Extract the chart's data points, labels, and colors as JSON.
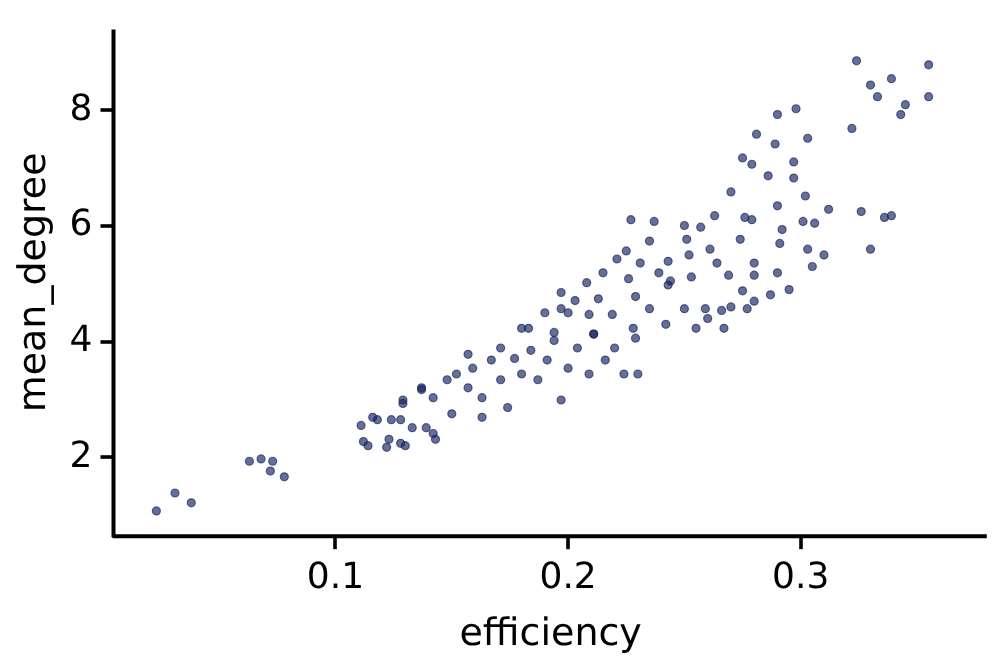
{
  "chart_data": {
    "type": "scatter",
    "xlabel": "efficiency",
    "ylabel": "mean_degree",
    "xlim": [
      0.005,
      0.38
    ],
    "ylim": [
      0.65,
      9.4
    ],
    "xticks": [
      0.1,
      0.2,
      0.3
    ],
    "yticks": [
      2,
      4,
      6,
      8
    ],
    "grid": false,
    "legend": false,
    "marker": "circle",
    "series": [
      {
        "color": "#14235e",
        "x": [
          0.023,
          0.031,
          0.038,
          0.063,
          0.068,
          0.073,
          0.072,
          0.078,
          0.111,
          0.112,
          0.114,
          0.118,
          0.122,
          0.123,
          0.128,
          0.13,
          0.128,
          0.133,
          0.129,
          0.137,
          0.142,
          0.143,
          0.324,
          0.355,
          0.33,
          0.339,
          0.333,
          0.345,
          0.355,
          0.343,
          0.322,
          0.29,
          0.298,
          0.281,
          0.289,
          0.303,
          0.275,
          0.279,
          0.297,
          0.286,
          0.297,
          0.27,
          0.302,
          0.263,
          0.29,
          0.276,
          0.279,
          0.301,
          0.312,
          0.326,
          0.339,
          0.336,
          0.306,
          0.292,
          0.274,
          0.291,
          0.303,
          0.33,
          0.227,
          0.237,
          0.25,
          0.257,
          0.235,
          0.225,
          0.221,
          0.231,
          0.243,
          0.251,
          0.252,
          0.261,
          0.264,
          0.215,
          0.226,
          0.208,
          0.239,
          0.244,
          0.253,
          0.269,
          0.28,
          0.28,
          0.29,
          0.197,
          0.203,
          0.213,
          0.229,
          0.243,
          0.275,
          0.287,
          0.19,
          0.2,
          0.219,
          0.235,
          0.25,
          0.259,
          0.266,
          0.277,
          0.18,
          0.194,
          0.211,
          0.228,
          0.242,
          0.255,
          0.267,
          0.116,
          0.124,
          0.129,
          0.137,
          0.142,
          0.148,
          0.152,
          0.157,
          0.159,
          0.163,
          0.167,
          0.171,
          0.174,
          0.177,
          0.18,
          0.184,
          0.187,
          0.191,
          0.194,
          0.197,
          0.2,
          0.204,
          0.209,
          0.211,
          0.216,
          0.22,
          0.224,
          0.229,
          0.23,
          0.15,
          0.139,
          0.163,
          0.209,
          0.197,
          0.183,
          0.171,
          0.157,
          0.26,
          0.27,
          0.28,
          0.295,
          0.305,
          0.31
        ],
        "values": [
          1.07,
          1.38,
          1.21,
          1.93,
          1.97,
          1.93,
          1.76,
          1.66,
          2.55,
          2.27,
          2.2,
          2.65,
          2.17,
          2.31,
          2.24,
          2.2,
          2.65,
          2.51,
          2.93,
          3.2,
          2.41,
          2.31,
          8.86,
          8.79,
          8.44,
          8.55,
          8.24,
          8.1,
          8.24,
          7.93,
          7.69,
          7.93,
          8.03,
          7.59,
          7.42,
          7.52,
          7.18,
          7.07,
          7.11,
          6.87,
          6.83,
          6.59,
          6.52,
          6.18,
          6.35,
          6.15,
          6.11,
          6.08,
          6.29,
          6.25,
          6.18,
          6.15,
          6.05,
          5.94,
          5.77,
          5.7,
          5.6,
          5.6,
          6.11,
          6.08,
          6.01,
          5.98,
          5.74,
          5.57,
          5.43,
          5.36,
          5.39,
          5.77,
          5.5,
          5.6,
          5.36,
          5.19,
          5.09,
          5.02,
          5.19,
          5.05,
          5.12,
          5.15,
          5.36,
          5.15,
          5.19,
          4.85,
          4.71,
          4.74,
          4.78,
          4.98,
          4.88,
          4.81,
          4.5,
          4.5,
          4.47,
          4.57,
          4.57,
          4.57,
          4.54,
          4.57,
          4.23,
          4.16,
          4.13,
          4.23,
          4.3,
          4.23,
          4.23,
          2.69,
          2.65,
          2.99,
          3.17,
          3.03,
          3.34,
          3.44,
          3.2,
          3.54,
          3.03,
          3.68,
          3.34,
          2.86,
          3.71,
          3.44,
          3.85,
          3.34,
          3.68,
          4.02,
          2.99,
          3.54,
          3.89,
          3.44,
          4.13,
          3.68,
          3.89,
          3.44,
          4.06,
          3.44,
          2.75,
          2.51,
          2.69,
          4.47,
          4.57,
          4.23,
          3.89,
          3.78,
          4.4,
          4.6,
          4.7,
          4.9,
          5.3,
          5.5
        ]
      }
    ]
  }
}
